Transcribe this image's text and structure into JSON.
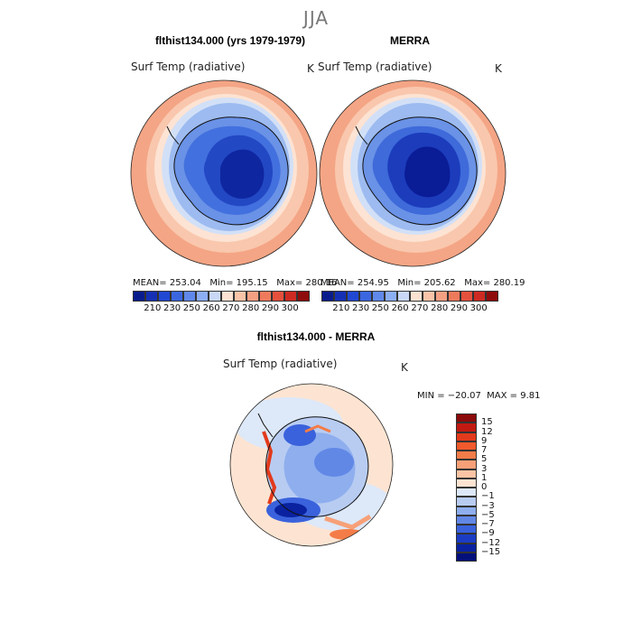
{
  "title": "JJA",
  "top_panels": [
    {
      "title": "flthist134.000 (yrs 1979-1979)",
      "variable": "Surf Temp (radiative)",
      "unit": "K",
      "stats": {
        "mean": "MEAN= 253.04",
        "min": "Min= 195.15",
        "max": "Max= 280.16"
      }
    },
    {
      "title": "MERRA",
      "variable": "Surf Temp (radiative)",
      "unit": "K",
      "stats": {
        "mean": "MEAN= 254.95",
        "min": "Min= 205.62",
        "max": "Max= 280.19"
      }
    }
  ],
  "top_colorbar": {
    "labels": [
      "210",
      "230",
      "250",
      "260",
      "270",
      "280",
      "290",
      "300"
    ],
    "colors": [
      "#0a1c8c",
      "#1530b4",
      "#2148d2",
      "#3b66e0",
      "#5f88ea",
      "#8caef2",
      "#c8d8f6",
      "#fbe2d2",
      "#f9c4a8",
      "#f4a082",
      "#ee7a5c",
      "#e4503c",
      "#cc2a22",
      "#8e0c0c"
    ]
  },
  "diff_panel": {
    "title": "flthist134.000 - MERRA",
    "variable": "Surf Temp (radiative)",
    "unit": "K",
    "min_text": "MIN = −20.07",
    "max_text": "MAX =    9.81"
  },
  "diff_colorbar": {
    "labels": [
      "15",
      "12",
      "9",
      "7",
      "5",
      "3",
      "1",
      "0",
      "−1",
      "−3",
      "−5",
      "−7",
      "−9",
      "−12",
      "−15"
    ],
    "colors": [
      "#8b0a0a",
      "#c21a12",
      "#e23a1c",
      "#f05a2c",
      "#f47c48",
      "#f7a078",
      "#fbc4a4",
      "#fde4d2",
      "#dde8f8",
      "#b8ccf2",
      "#8eaeee",
      "#6288e6",
      "#3a62dc",
      "#1c3cc4",
      "#0a22a0",
      "#04107a"
    ]
  },
  "chart_data": [
    {
      "type": "heatmap",
      "title": "flthist134.000 (yrs 1979-1979)",
      "variable": "Surf Temp (radiative)",
      "unit": "K",
      "mean": 253.04,
      "min": 195.15,
      "max": 280.16,
      "levels": [
        210,
        230,
        250,
        260,
        270,
        280,
        290,
        300
      ]
    },
    {
      "type": "heatmap",
      "title": "MERRA",
      "variable": "Surf Temp (radiative)",
      "unit": "K",
      "mean": 254.95,
      "min": 205.62,
      "max": 280.19,
      "levels": [
        210,
        230,
        250,
        260,
        270,
        280,
        290,
        300
      ]
    },
    {
      "type": "heatmap",
      "title": "flthist134.000 - MERRA",
      "variable": "Surf Temp (radiative)",
      "unit": "K",
      "min": -20.07,
      "max": 9.81,
      "levels": [
        -15,
        -12,
        -9,
        -7,
        -5,
        -3,
        -1,
        0,
        1,
        3,
        5,
        7,
        9,
        12,
        15
      ]
    }
  ]
}
